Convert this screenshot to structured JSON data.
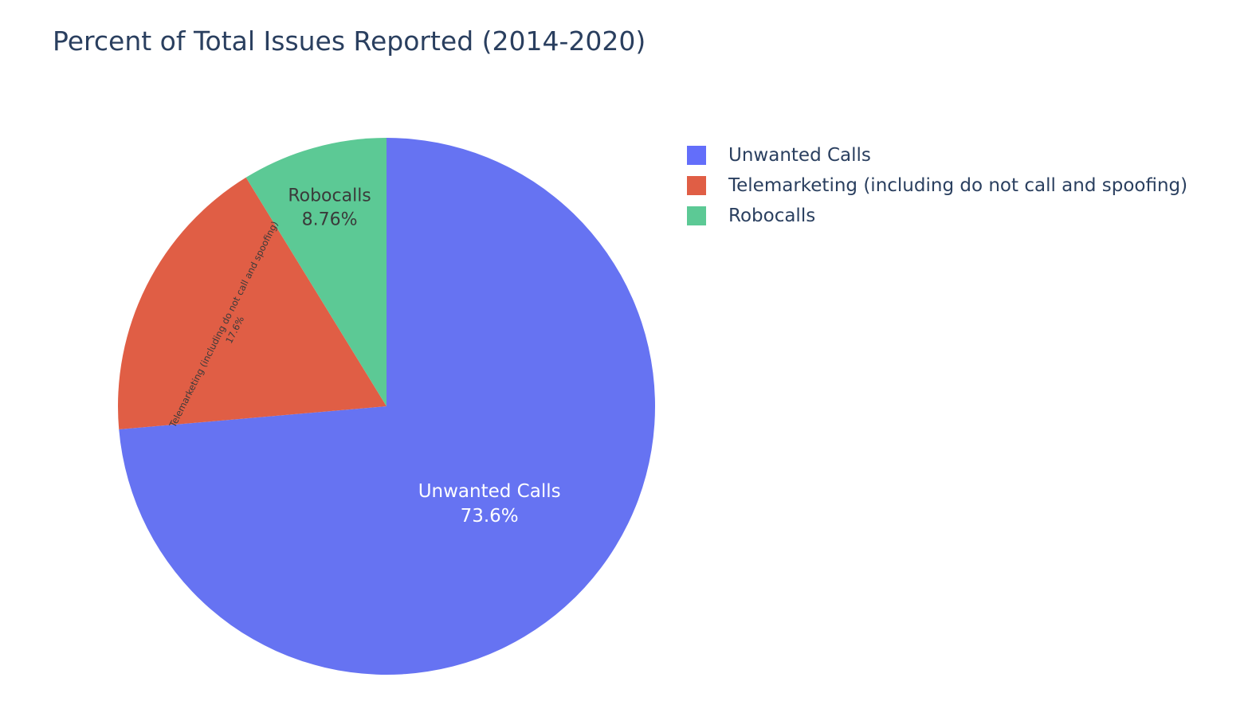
{
  "chart_data": {
    "type": "pie",
    "title": "Percent of Total Issues Reported (2014-2020)",
    "labels": [
      "Unwanted Calls",
      "Telemarketing (including do not call and spoofing)",
      "Robocalls"
    ],
    "values": [
      73.6,
      17.6,
      8.76
    ],
    "value_labels": [
      "73.6%",
      "17.6%",
      "8.76%"
    ],
    "colors": [
      "#636efa",
      "#ef553b",
      "#00cc96"
    ],
    "legend_position": "top-right",
    "sort": "descending",
    "direction": "clockwise",
    "start": "12 o'clock"
  }
}
